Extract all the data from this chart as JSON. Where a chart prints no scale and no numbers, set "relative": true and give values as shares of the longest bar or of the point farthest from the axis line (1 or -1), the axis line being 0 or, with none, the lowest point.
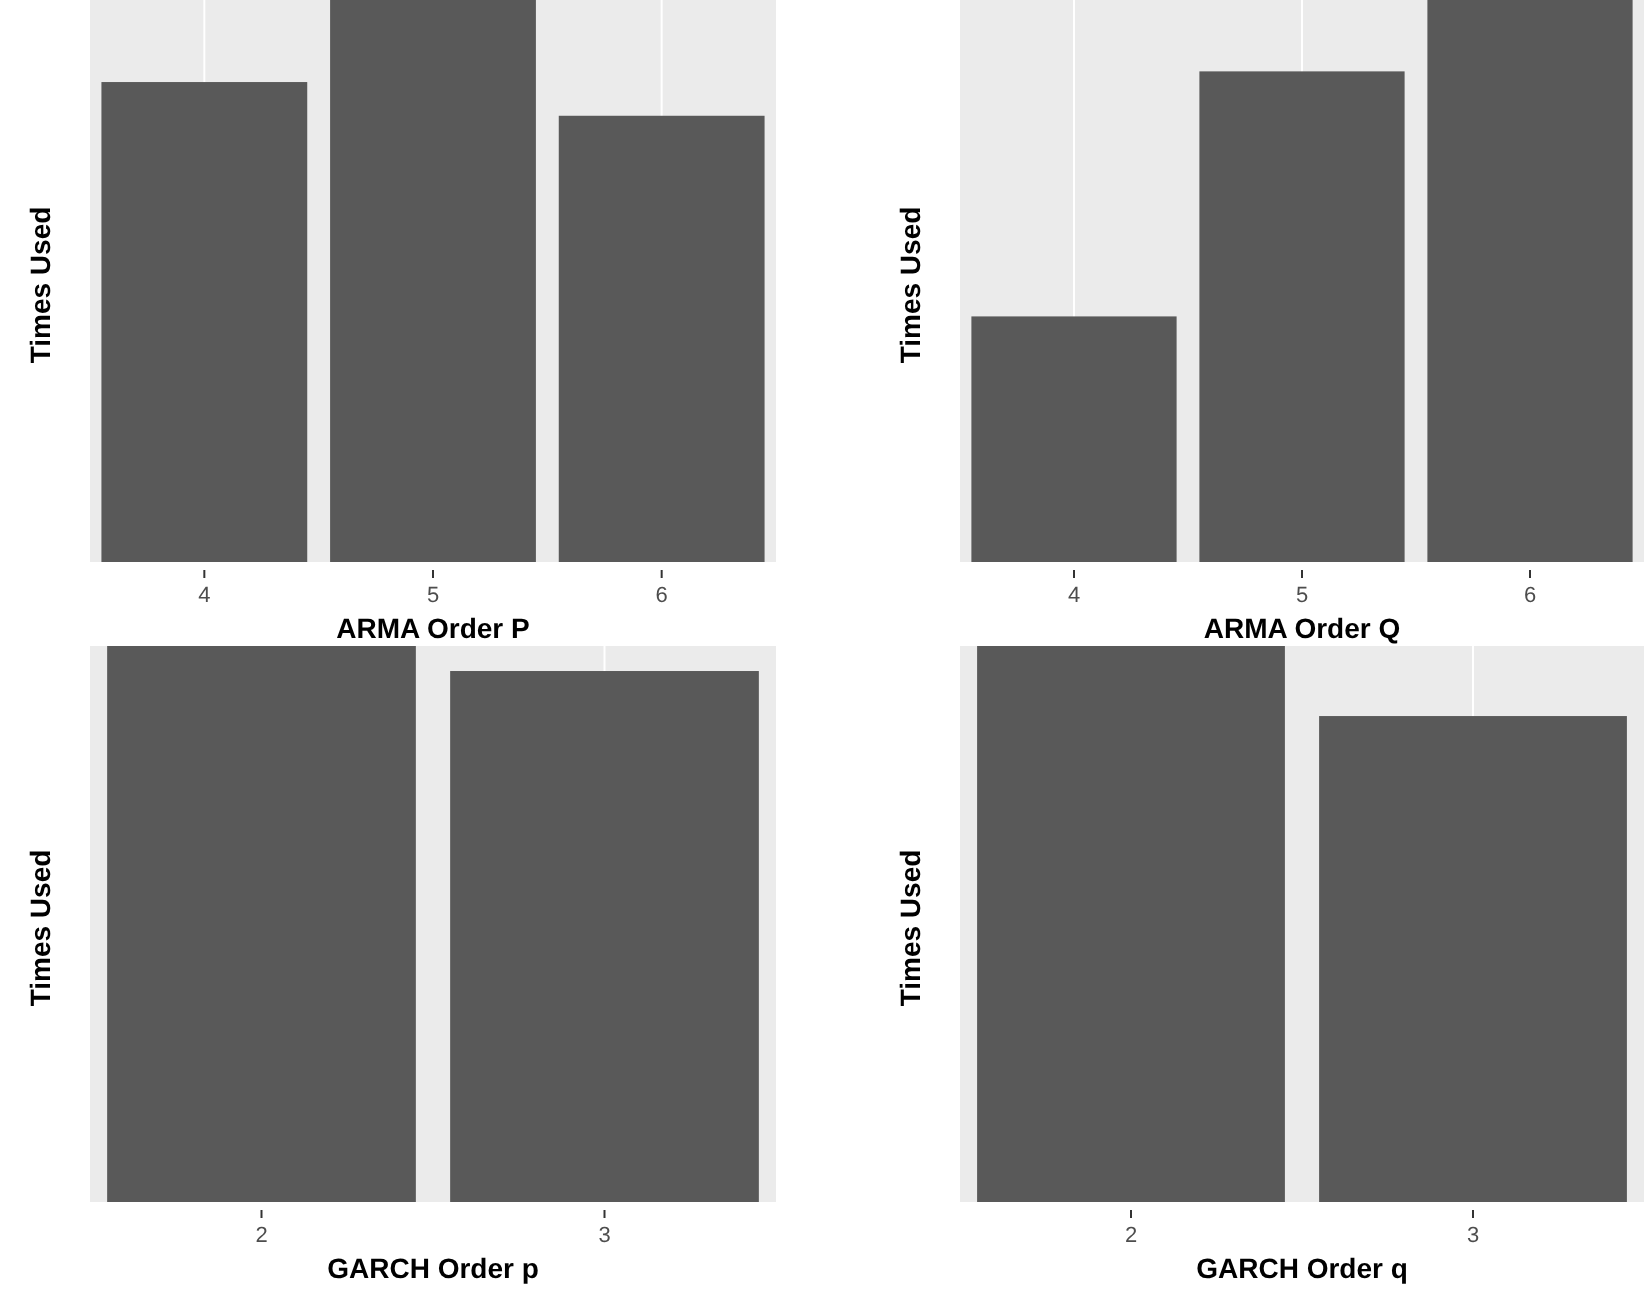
{
  "chart_data": [
    {
      "type": "bar",
      "relative": true,
      "categories": [
        "4",
        "5",
        "6"
      ],
      "values": [
        0.854,
        1,
        0.794
      ],
      "color": "#595959",
      "xlabel": "ARMA Order P",
      "ylabel": "Times Used",
      "grid": "x"
    },
    {
      "type": "bar",
      "relative": true,
      "categories": [
        "4",
        "5",
        "6"
      ],
      "values": [
        0.437,
        0.873,
        1
      ],
      "color": "#595959",
      "xlabel": "ARMA Order Q",
      "ylabel": "Times Used",
      "grid": "x"
    },
    {
      "type": "bar",
      "relative": true,
      "categories": [
        "2",
        "3"
      ],
      "values": [
        1,
        0.955
      ],
      "color": "#595959",
      "xlabel": "GARCH Order p",
      "ylabel": "Times Used",
      "grid": "x"
    },
    {
      "type": "bar",
      "relative": true,
      "categories": [
        "2",
        "3"
      ],
      "values": [
        1,
        0.874
      ],
      "color": "#595959",
      "xlabel": "GARCH Order q",
      "ylabel": "Times Used",
      "grid": "x"
    }
  ]
}
